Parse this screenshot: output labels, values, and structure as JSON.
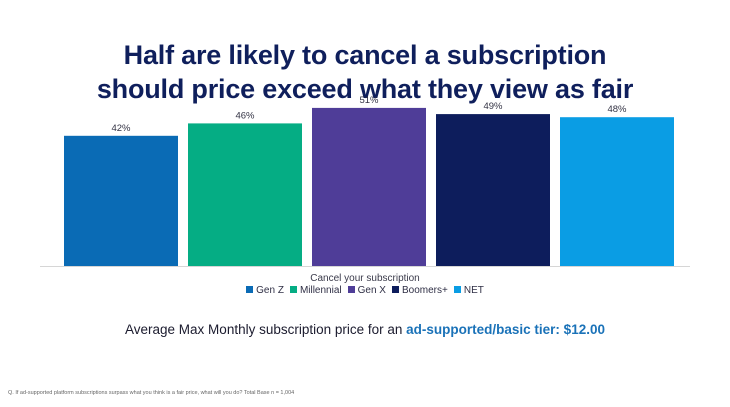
{
  "title_line1": "Half are likely to cancel a subscription",
  "title_line2": "should price exceed what they view as fair",
  "caption": {
    "prefix": "Average Max Monthly subscription price for an ",
    "highlight": "ad-supported/basic tier: $12.00"
  },
  "footnote": "Q. If ad-supported platform subscriptions surpass what you think is a fair price, what will you do? Total Base n = 1,004",
  "chart_data": {
    "type": "bar",
    "xlabel": "Cancel your subscription",
    "ylabel": "",
    "ylim": [
      0,
      60
    ],
    "grid": false,
    "legend_position": "bottom",
    "categories": [
      "Cancel your subscription"
    ],
    "series": [
      {
        "name": "Gen Z",
        "values": [
          42
        ],
        "label": "42%",
        "color": "#0a6bb5"
      },
      {
        "name": "Millennial",
        "values": [
          46
        ],
        "label": "46%",
        "color": "#05ad84"
      },
      {
        "name": "Gen X",
        "values": [
          51
        ],
        "label": "51%",
        "color": "#4f3d98"
      },
      {
        "name": "Boomers+",
        "values": [
          49
        ],
        "label": "49%",
        "color": "#0d1d5c"
      },
      {
        "name": "NET",
        "values": [
          48
        ],
        "label": "48%",
        "color": "#0a9de4"
      }
    ]
  }
}
